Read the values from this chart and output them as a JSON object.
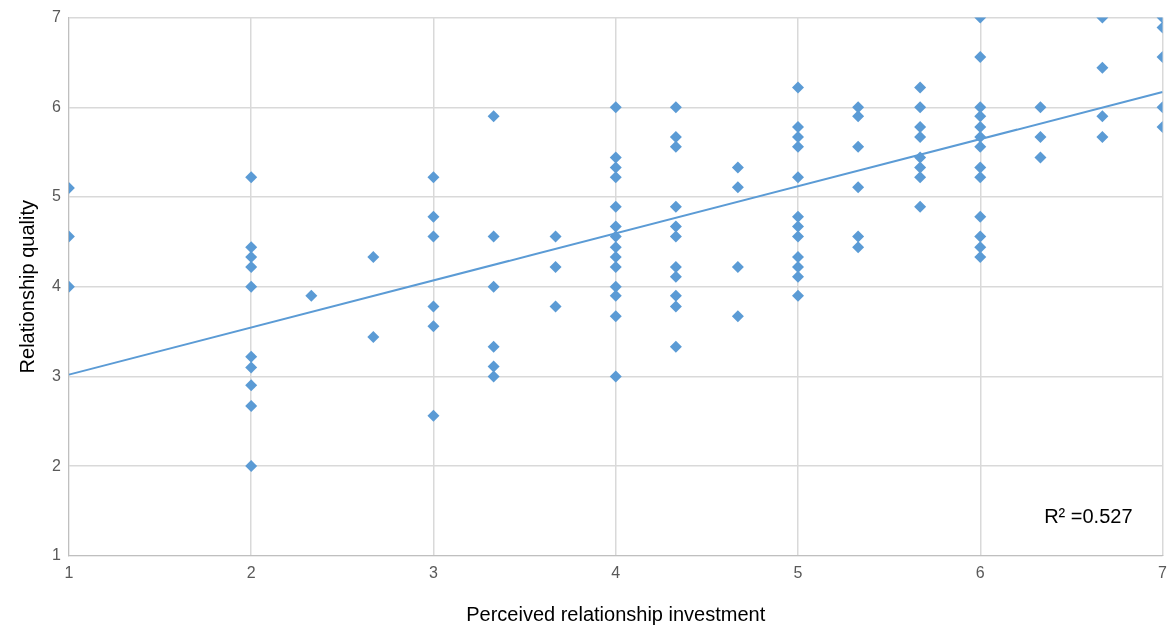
{
  "chart_data": {
    "type": "scatter",
    "xlabel": "Perceived relationship investment",
    "ylabel": "Relationship quality",
    "xlim": [
      1,
      7
    ],
    "xticks": [
      1,
      2,
      3,
      4,
      5,
      6,
      7
    ],
    "ylim": [
      1,
      7
    ],
    "yticks": [
      1,
      2,
      3,
      4,
      5,
      6,
      7
    ],
    "grid": true,
    "legend": false,
    "marker": "diamond",
    "annotations": [
      "R² =0.527"
    ],
    "series": [
      {
        "color": "#5b9bd5",
        "x": [
          1,
          1,
          1,
          2,
          2,
          2,
          2,
          2,
          2,
          2,
          2,
          2,
          2,
          2.33,
          2.67,
          2.67,
          3,
          3,
          3,
          3,
          3,
          3,
          3.33,
          3.33,
          3.33,
          3.33,
          3.33,
          3.33,
          3.67,
          3.67,
          3.67,
          4,
          4,
          4,
          4,
          4,
          4,
          4,
          4,
          4,
          4,
          4,
          4,
          4,
          4,
          4.33,
          4.33,
          4.33,
          4.33,
          4.33,
          4.33,
          4.33,
          4.33,
          4.33,
          4.33,
          4.33,
          4.67,
          4.67,
          4.67,
          4.67,
          5,
          5,
          5,
          5,
          5,
          5,
          5,
          5,
          5,
          5,
          5,
          5,
          5.33,
          5.33,
          5.33,
          5.33,
          5.33,
          5.33,
          5.67,
          5.67,
          5.67,
          5.67,
          5.67,
          5.67,
          5.67,
          5.67,
          6,
          6,
          6,
          6,
          6,
          6,
          6,
          6,
          6,
          6,
          6,
          6,
          6,
          6.33,
          6.33,
          6.33,
          6.67,
          6.67,
          6.67,
          6.67,
          7,
          7,
          7,
          7,
          7
        ],
        "values": [
          5.1,
          4.56,
          4.0,
          5.22,
          4.44,
          4.33,
          4.22,
          4.0,
          3.22,
          3.1,
          2.9,
          2.67,
          2.0,
          3.9,
          4.33,
          3.44,
          5.22,
          4.78,
          4.56,
          3.78,
          3.56,
          2.56,
          5.9,
          4.56,
          4.0,
          3.33,
          3.11,
          3.0,
          4.56,
          4.22,
          3.78,
          6.0,
          5.44,
          5.33,
          5.22,
          4.89,
          4.67,
          4.56,
          4.44,
          4.33,
          4.22,
          4.0,
          3.9,
          3.67,
          3.0,
          6.0,
          5.67,
          5.56,
          4.89,
          4.67,
          4.56,
          4.22,
          4.11,
          3.9,
          3.78,
          3.33,
          5.33,
          5.11,
          4.22,
          3.67,
          6.22,
          5.78,
          5.67,
          5.56,
          5.22,
          4.78,
          4.67,
          4.56,
          4.33,
          4.22,
          4.11,
          3.9,
          6.0,
          5.9,
          5.56,
          5.11,
          4.56,
          4.44,
          6.22,
          6.0,
          5.78,
          5.67,
          5.44,
          5.33,
          5.22,
          4.89,
          7.0,
          6.56,
          6.0,
          5.9,
          5.78,
          5.67,
          5.56,
          5.33,
          5.22,
          4.78,
          4.56,
          4.44,
          4.33,
          6.0,
          5.67,
          5.44,
          7.0,
          6.44,
          5.9,
          5.67,
          7.0,
          6.89,
          6.56,
          6.0,
          5.78
        ]
      },
      {
        "type": "line",
        "color": "#5b9bd5",
        "marker": "none",
        "x": [
          1,
          7
        ],
        "values": [
          3.02,
          6.17
        ]
      }
    ]
  }
}
